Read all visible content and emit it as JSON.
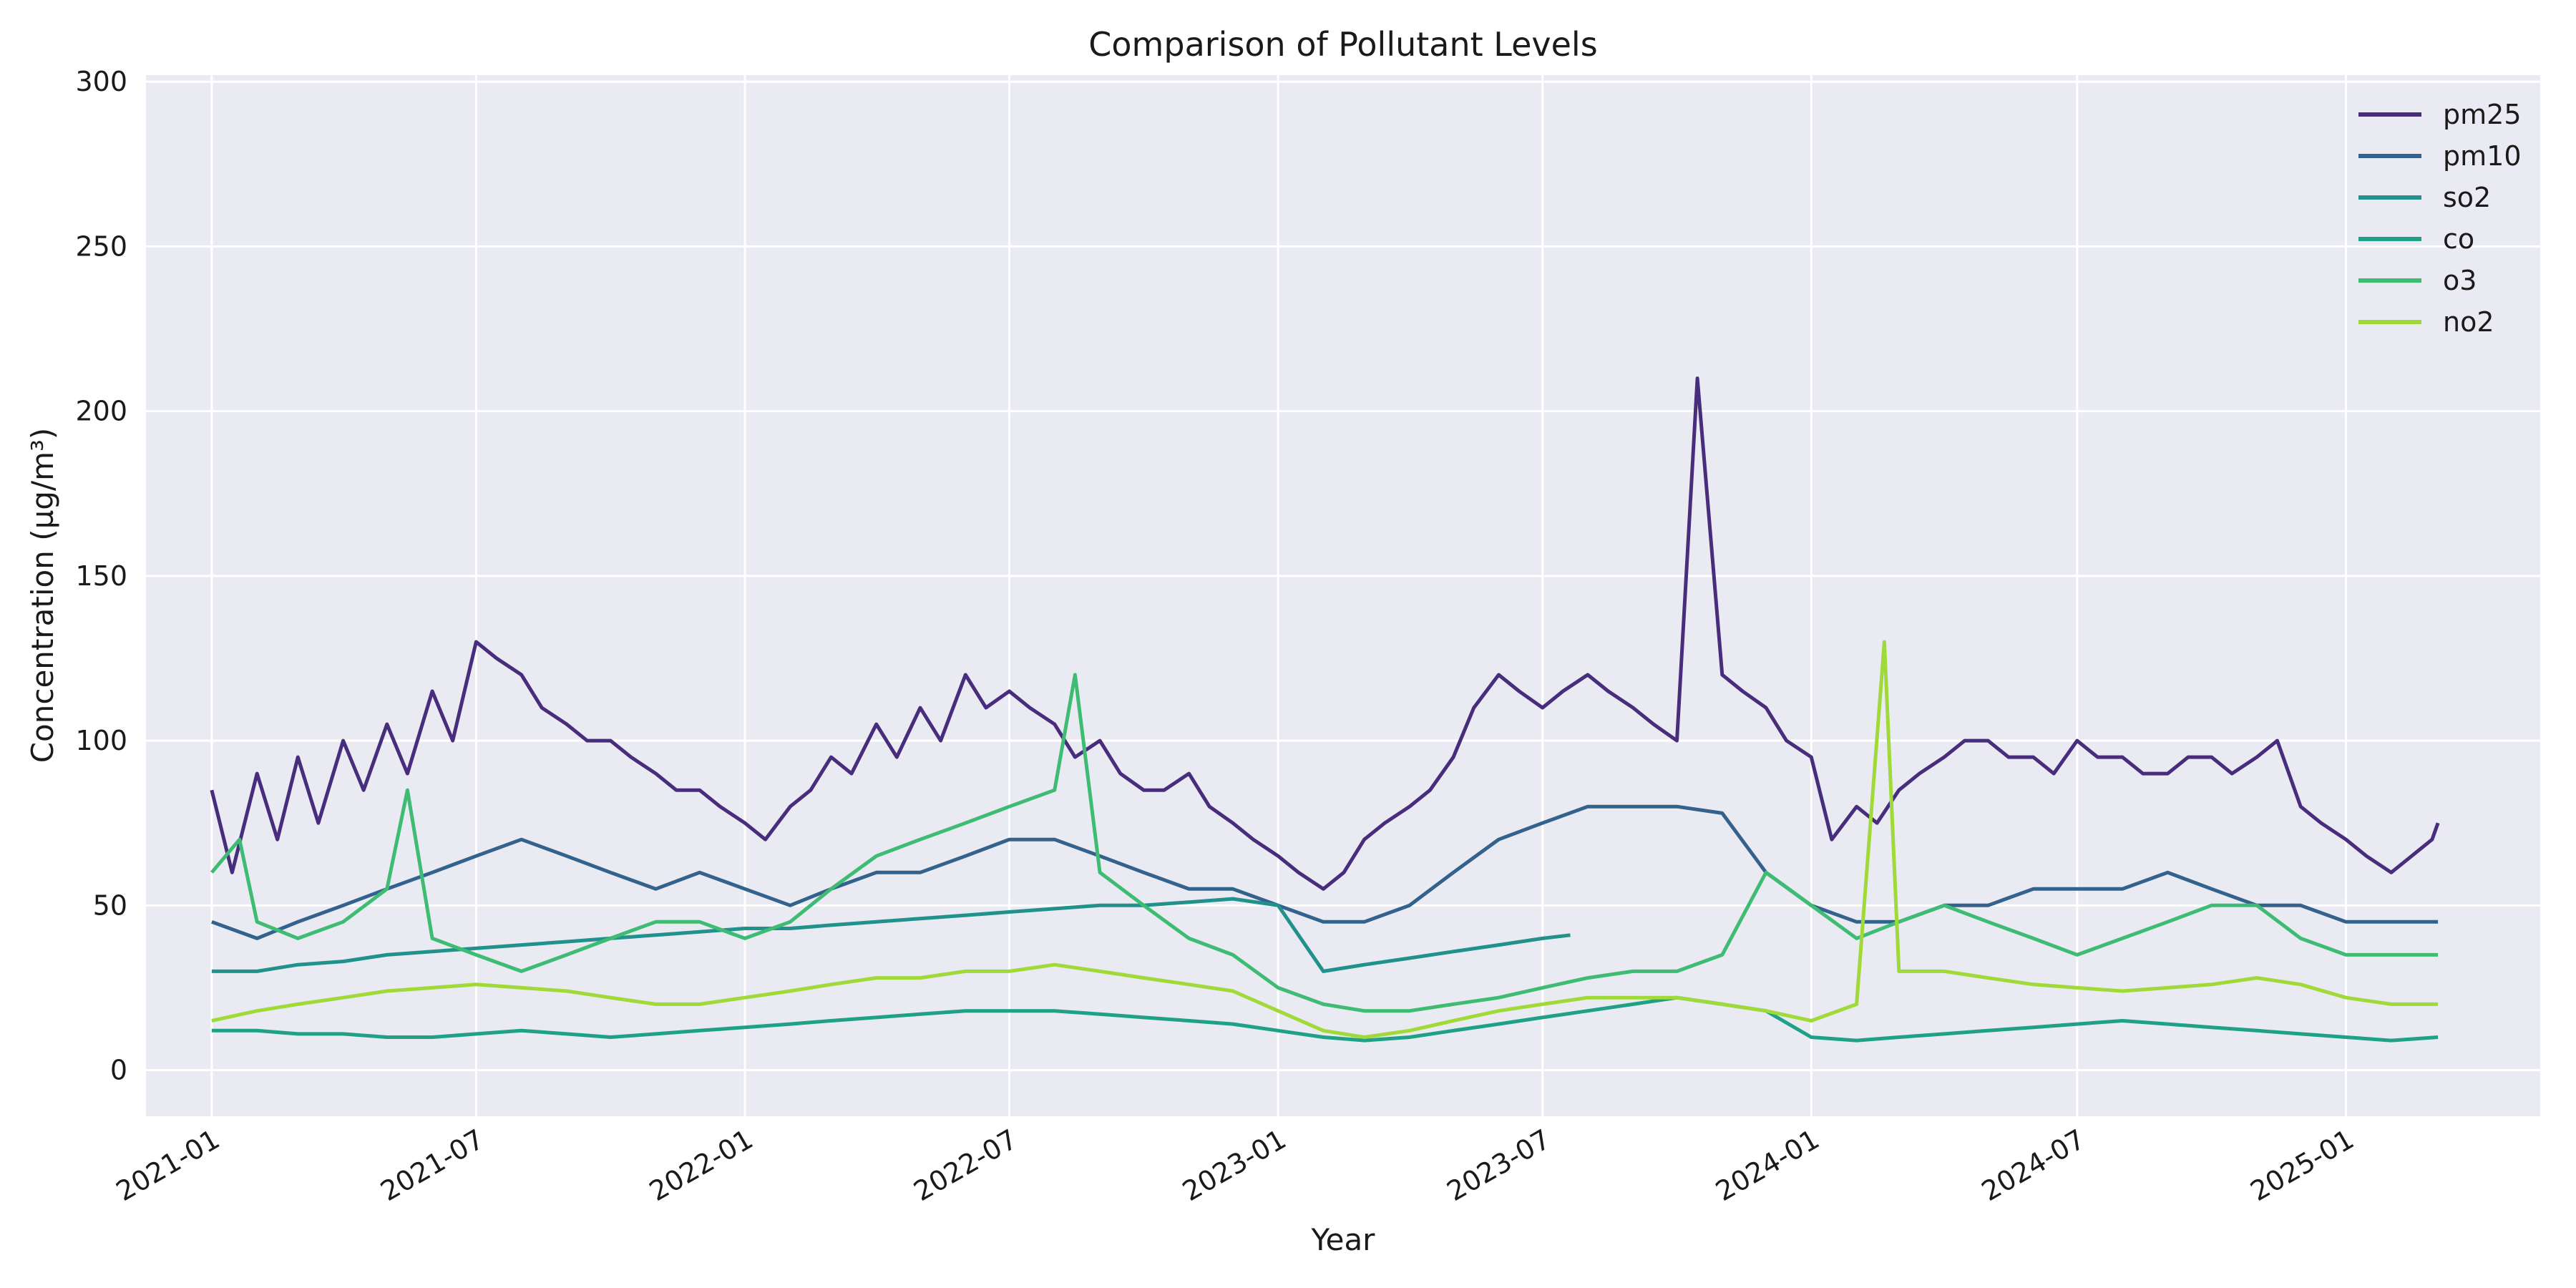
{
  "chart_data": {
    "type": "line",
    "title": "Comparison of Pollutant Levels",
    "xlabel": "Year",
    "ylabel": "Concentration (µg/m³)",
    "x_type": "date",
    "xlim": [
      "2020-11-17",
      "2025-05-14"
    ],
    "ylim": [
      -14,
      302
    ],
    "x_ticks": [
      "2021-01",
      "2021-07",
      "2022-01",
      "2022-07",
      "2023-01",
      "2023-07",
      "2024-01",
      "2024-07",
      "2025-01"
    ],
    "y_ticks": [
      0,
      50,
      100,
      150,
      200,
      250,
      300
    ],
    "grid": true,
    "legend_position": "top-right",
    "background": "#eaeaf2",
    "series": [
      {
        "name": "pm25",
        "color": "#472d7b",
        "x": [
          "2021-01-01",
          "2021-01-15",
          "2021-02-01",
          "2021-02-15",
          "2021-03-01",
          "2021-03-15",
          "2021-04-01",
          "2021-04-15",
          "2021-05-01",
          "2021-05-15",
          "2021-06-01",
          "2021-06-15",
          "2021-07-01",
          "2021-07-15",
          "2021-08-01",
          "2021-08-15",
          "2021-09-01",
          "2021-09-15",
          "2021-10-01",
          "2021-10-15",
          "2021-11-01",
          "2021-11-15",
          "2021-12-01",
          "2021-12-15",
          "2022-01-01",
          "2022-01-15",
          "2022-02-01",
          "2022-02-15",
          "2022-03-01",
          "2022-03-15",
          "2022-04-01",
          "2022-04-15",
          "2022-05-01",
          "2022-05-15",
          "2022-06-01",
          "2022-06-15",
          "2022-07-01",
          "2022-07-15",
          "2022-08-01",
          "2022-08-15",
          "2022-09-01",
          "2022-09-15",
          "2022-10-01",
          "2022-10-15",
          "2022-11-01",
          "2022-11-15",
          "2022-12-01",
          "2022-12-15",
          "2023-01-01",
          "2023-01-15",
          "2023-02-01",
          "2023-02-15",
          "2023-03-01",
          "2023-03-15",
          "2023-04-01",
          "2023-04-15",
          "2023-05-01",
          "2023-05-15",
          "2023-06-01",
          "2023-06-15",
          "2023-07-01",
          "2023-07-15",
          "2023-08-01",
          "2023-08-15",
          "2023-09-01",
          "2023-09-15",
          "2023-10-01",
          "2023-10-15",
          "2023-11-01",
          "2023-11-15",
          "2023-12-01",
          "2023-12-15",
          "2024-01-01",
          "2024-01-15",
          "2024-02-01",
          "2024-02-15",
          "2024-03-01",
          "2024-03-15",
          "2024-04-01",
          "2024-04-15",
          "2024-05-01",
          "2024-05-15",
          "2024-06-01",
          "2024-06-15",
          "2024-07-01",
          "2024-07-15",
          "2024-08-01",
          "2024-08-15",
          "2024-09-01",
          "2024-09-15",
          "2024-10-01",
          "2024-10-15",
          "2024-11-01",
          "2024-11-15",
          "2024-12-01",
          "2024-12-15",
          "2025-01-01",
          "2025-01-15",
          "2025-02-01",
          "2025-02-15",
          "2025-03-01",
          "2025-03-05"
        ],
        "values": [
          85,
          60,
          90,
          70,
          95,
          75,
          100,
          85,
          105,
          90,
          115,
          100,
          130,
          125,
          120,
          110,
          105,
          100,
          100,
          95,
          90,
          85,
          85,
          80,
          75,
          70,
          80,
          85,
          95,
          90,
          105,
          95,
          110,
          100,
          120,
          110,
          115,
          110,
          105,
          95,
          100,
          90,
          85,
          85,
          90,
          80,
          75,
          70,
          65,
          60,
          55,
          60,
          70,
          75,
          80,
          85,
          95,
          110,
          120,
          115,
          110,
          115,
          120,
          115,
          110,
          105,
          100,
          210,
          120,
          115,
          110,
          100,
          95,
          70,
          80,
          75,
          85,
          90,
          95,
          100,
          100,
          95,
          95,
          90,
          100,
          95,
          95,
          90,
          90,
          95,
          95,
          90,
          95,
          100,
          80,
          75,
          70,
          65,
          60,
          65,
          70,
          75
        ]
      },
      {
        "name": "pm10",
        "color": "#33638d",
        "x": [
          "2021-01-01",
          "2021-02-01",
          "2021-03-01",
          "2021-04-01",
          "2021-05-01",
          "2021-06-01",
          "2021-07-01",
          "2021-08-01",
          "2021-09-01",
          "2021-10-01",
          "2021-11-01",
          "2021-12-01",
          "2022-01-01",
          "2022-02-01",
          "2022-03-01",
          "2022-04-01",
          "2022-05-01",
          "2022-06-01",
          "2022-07-01",
          "2022-08-01",
          "2022-09-01",
          "2022-10-01",
          "2022-11-01",
          "2022-12-01",
          "2023-01-01",
          "2023-02-01",
          "2023-03-01",
          "2023-04-01",
          "2023-05-01",
          "2023-06-01",
          "2023-07-01",
          "2023-08-01",
          "2023-09-01",
          "2023-10-01",
          "2023-11-01",
          "2023-12-01",
          "2024-01-01",
          "2024-02-01",
          "2024-03-01",
          "2024-04-01",
          "2024-05-01",
          "2024-06-01",
          "2024-07-01",
          "2024-08-01",
          "2024-09-01",
          "2024-10-01",
          "2024-11-01",
          "2024-12-01",
          "2025-01-01",
          "2025-02-01",
          "2025-03-05"
        ],
        "values": [
          45,
          40,
          45,
          50,
          55,
          60,
          65,
          70,
          65,
          60,
          55,
          60,
          55,
          50,
          55,
          60,
          60,
          65,
          70,
          70,
          65,
          60,
          55,
          55,
          50,
          45,
          45,
          50,
          60,
          70,
          75,
          80,
          80,
          80,
          78,
          60,
          50,
          45,
          45,
          50,
          50,
          55,
          55,
          55,
          60,
          55,
          50,
          50,
          45,
          45,
          45
        ]
      },
      {
        "name": "so2",
        "color": "#21918c",
        "x": [
          "2021-01-01",
          "2021-02-01",
          "2021-03-01",
          "2021-04-01",
          "2021-05-01",
          "2021-06-01",
          "2021-07-01",
          "2021-08-01",
          "2021-09-01",
          "2021-10-01",
          "2021-11-01",
          "2021-12-01",
          "2022-01-01",
          "2022-02-01",
          "2022-03-01",
          "2022-04-01",
          "2022-05-01",
          "2022-06-01",
          "2022-07-01",
          "2022-08-01",
          "2022-09-01",
          "2022-10-01",
          "2022-11-01",
          "2022-12-01",
          "2023-01-01",
          "2023-02-01",
          "2023-03-01",
          "2023-04-01",
          "2023-05-01",
          "2023-06-01",
          "2023-07-01",
          "2023-07-20"
        ],
        "values": [
          30,
          30,
          32,
          33,
          35,
          36,
          37,
          38,
          39,
          40,
          41,
          42,
          43,
          43,
          44,
          45,
          46,
          47,
          48,
          49,
          50,
          50,
          51,
          52,
          50,
          30,
          32,
          34,
          36,
          38,
          40,
          41
        ]
      },
      {
        "name": "co",
        "color": "#1fa187",
        "x": [
          "2021-01-01",
          "2021-02-01",
          "2021-03-01",
          "2021-04-01",
          "2021-05-01",
          "2021-06-01",
          "2021-07-01",
          "2021-08-01",
          "2021-09-01",
          "2021-10-01",
          "2021-11-01",
          "2021-12-01",
          "2022-01-01",
          "2022-02-01",
          "2022-03-01",
          "2022-04-01",
          "2022-05-01",
          "2022-06-01",
          "2022-07-01",
          "2022-08-01",
          "2022-09-01",
          "2022-10-01",
          "2022-11-01",
          "2022-12-01",
          "2023-01-01",
          "2023-02-01",
          "2023-03-01",
          "2023-04-01",
          "2023-05-01",
          "2023-06-01",
          "2023-07-01",
          "2023-08-01",
          "2023-09-01",
          "2023-10-01",
          "2023-11-01",
          "2023-12-01",
          "2024-01-01",
          "2024-02-01",
          "2024-03-01",
          "2024-04-01",
          "2024-05-01",
          "2024-06-01",
          "2024-07-01",
          "2024-08-01",
          "2024-09-01",
          "2024-10-01",
          "2024-11-01",
          "2024-12-01",
          "2025-01-01",
          "2025-02-01",
          "2025-03-05"
        ],
        "values": [
          12,
          12,
          11,
          11,
          10,
          10,
          11,
          12,
          11,
          10,
          11,
          12,
          13,
          14,
          15,
          16,
          17,
          18,
          18,
          18,
          17,
          16,
          15,
          14,
          12,
          10,
          9,
          10,
          12,
          14,
          16,
          18,
          20,
          22,
          20,
          18,
          10,
          9,
          10,
          11,
          12,
          13,
          14,
          15,
          14,
          13,
          12,
          11,
          10,
          9,
          10
        ]
      },
      {
        "name": "o3",
        "color": "#3fbc73",
        "x": [
          "2021-01-01",
          "2021-01-20",
          "2021-02-01",
          "2021-03-01",
          "2021-04-01",
          "2021-05-01",
          "2021-05-15",
          "2021-06-01",
          "2021-07-01",
          "2021-08-01",
          "2021-09-01",
          "2021-10-01",
          "2021-11-01",
          "2021-12-01",
          "2022-01-01",
          "2022-02-01",
          "2022-03-01",
          "2022-04-01",
          "2022-05-01",
          "2022-06-01",
          "2022-07-01",
          "2022-08-01",
          "2022-08-15",
          "2022-09-01",
          "2022-10-01",
          "2022-11-01",
          "2022-12-01",
          "2023-01-01",
          "2023-02-01",
          "2023-03-01",
          "2023-04-01",
          "2023-05-01",
          "2023-06-01",
          "2023-07-01",
          "2023-08-01",
          "2023-09-01",
          "2023-10-01",
          "2023-11-01",
          "2023-12-01",
          "2024-01-01",
          "2024-02-01",
          "2024-03-01",
          "2024-04-01",
          "2024-05-01",
          "2024-06-01",
          "2024-07-01",
          "2024-08-01",
          "2024-09-01",
          "2024-10-01",
          "2024-11-01",
          "2024-12-01",
          "2025-01-01",
          "2025-02-01",
          "2025-03-05"
        ],
        "values": [
          60,
          70,
          45,
          40,
          45,
          55,
          85,
          40,
          35,
          30,
          35,
          40,
          45,
          45,
          40,
          45,
          55,
          65,
          70,
          75,
          80,
          85,
          120,
          60,
          50,
          40,
          35,
          25,
          20,
          18,
          18,
          20,
          22,
          25,
          28,
          30,
          30,
          35,
          60,
          50,
          40,
          45,
          50,
          45,
          40,
          35,
          40,
          45,
          50,
          50,
          40,
          35,
          35,
          35
        ]
      },
      {
        "name": "no2",
        "color": "#a0da39",
        "x": [
          "2021-01-01",
          "2021-02-01",
          "2021-03-01",
          "2021-04-01",
          "2021-05-01",
          "2021-06-01",
          "2021-07-01",
          "2021-08-01",
          "2021-09-01",
          "2021-10-01",
          "2021-11-01",
          "2021-12-01",
          "2022-01-01",
          "2022-02-01",
          "2022-03-01",
          "2022-04-01",
          "2022-05-01",
          "2022-06-01",
          "2022-07-01",
          "2022-08-01",
          "2022-09-01",
          "2022-10-01",
          "2022-11-01",
          "2022-12-01",
          "2023-01-01",
          "2023-02-01",
          "2023-03-01",
          "2023-04-01",
          "2023-05-01",
          "2023-06-01",
          "2023-07-01",
          "2023-08-01",
          "2023-09-01",
          "2023-10-01",
          "2023-11-01",
          "2023-12-01",
          "2024-01-01",
          "2024-02-01",
          "2024-02-20",
          "2024-03-01",
          "2024-04-01",
          "2024-05-01",
          "2024-06-01",
          "2024-07-01",
          "2024-08-01",
          "2024-09-01",
          "2024-10-01",
          "2024-11-01",
          "2024-12-01",
          "2025-01-01",
          "2025-02-01",
          "2025-03-05"
        ],
        "values": [
          15,
          18,
          20,
          22,
          24,
          25,
          26,
          25,
          24,
          22,
          20,
          20,
          22,
          24,
          26,
          28,
          28,
          30,
          30,
          32,
          30,
          28,
          26,
          24,
          18,
          12,
          10,
          12,
          15,
          18,
          20,
          22,
          22,
          22,
          20,
          18,
          15,
          20,
          130,
          30,
          30,
          28,
          26,
          25,
          24,
          25,
          26,
          28,
          26,
          22,
          20,
          20
        ]
      }
    ]
  }
}
